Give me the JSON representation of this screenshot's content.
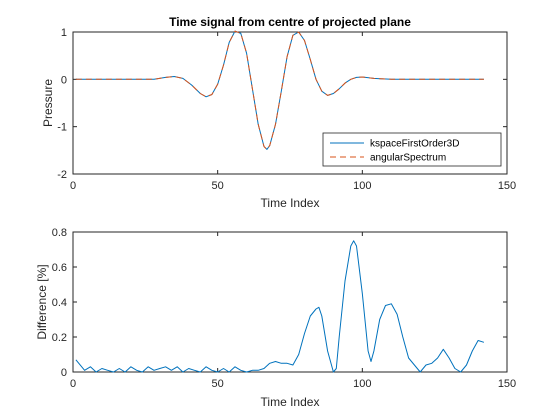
{
  "chart_data": [
    {
      "type": "line",
      "title": "Time signal from centre of projected plane",
      "xlabel": "Time Index",
      "ylabel": "Pressure",
      "xlim": [
        0,
        150
      ],
      "ylim": [
        -2,
        1
      ],
      "xticks": [
        "0",
        "50",
        "100",
        "150"
      ],
      "yticks": [
        "1",
        "0",
        "-1",
        "-2"
      ],
      "grid": false,
      "legend_position": "bottom-right",
      "colors": {
        "kspaceFirstOrder3D": "#0072BD",
        "angularSpectrum": "#D95319"
      },
      "series": [
        {
          "name": "kspaceFirstOrder3D",
          "style": "solid",
          "x": [
            1,
            20,
            28,
            32,
            35,
            38,
            41,
            44,
            46,
            48,
            50,
            52,
            54,
            56,
            58,
            60,
            62,
            64,
            66,
            67,
            68,
            70,
            72,
            74,
            76,
            78,
            80,
            82,
            84,
            86,
            88,
            90,
            92,
            94,
            96,
            98,
            100,
            104,
            110,
            115,
            120,
            142
          ],
          "y": [
            0,
            0,
            0,
            0.04,
            0.06,
            0.02,
            -0.12,
            -0.3,
            -0.37,
            -0.32,
            -0.1,
            0.3,
            0.78,
            1.02,
            0.97,
            0.55,
            -0.2,
            -0.95,
            -1.42,
            -1.48,
            -1.4,
            -0.95,
            -0.25,
            0.48,
            0.93,
            1.0,
            0.82,
            0.42,
            0.0,
            -0.25,
            -0.34,
            -0.3,
            -0.2,
            -0.08,
            0.0,
            0.04,
            0.05,
            0.02,
            0,
            0,
            0,
            0
          ]
        },
        {
          "name": "angularSpectrum",
          "style": "dashed",
          "x": [
            1,
            20,
            28,
            32,
            35,
            38,
            41,
            44,
            46,
            48,
            50,
            52,
            54,
            56,
            58,
            60,
            62,
            64,
            66,
            67,
            68,
            70,
            72,
            74,
            76,
            78,
            80,
            82,
            84,
            86,
            88,
            90,
            92,
            94,
            96,
            98,
            100,
            104,
            110,
            115,
            120,
            142
          ],
          "y": [
            0,
            0,
            0,
            0.04,
            0.06,
            0.02,
            -0.12,
            -0.3,
            -0.37,
            -0.32,
            -0.1,
            0.3,
            0.78,
            1.02,
            0.97,
            0.55,
            -0.2,
            -0.95,
            -1.42,
            -1.48,
            -1.4,
            -0.95,
            -0.25,
            0.48,
            0.93,
            1.0,
            0.82,
            0.42,
            0.0,
            -0.25,
            -0.34,
            -0.3,
            -0.2,
            -0.08,
            0.0,
            0.04,
            0.05,
            0.02,
            0,
            0,
            0,
            0
          ]
        }
      ]
    },
    {
      "type": "line",
      "title": "",
      "xlabel": "Time Index",
      "ylabel": "Difference [%]",
      "xlim": [
        0,
        150
      ],
      "ylim": [
        0,
        0.8
      ],
      "xticks": [
        "0",
        "50",
        "100",
        "150"
      ],
      "yticks": [
        "0.8",
        "0.6",
        "0.4",
        "0.2",
        "0"
      ],
      "grid": false,
      "colors": {
        "line": "#0072BD"
      },
      "series": [
        {
          "x": [
            1,
            2,
            4,
            6,
            8,
            10,
            12,
            14,
            16,
            18,
            20,
            22,
            24,
            26,
            28,
            30,
            32,
            34,
            36,
            38,
            40,
            42,
            44,
            46,
            48,
            50,
            52,
            54,
            56,
            58,
            60,
            62,
            64,
            66,
            68,
            70,
            72,
            74,
            76,
            78,
            80,
            82,
            84,
            85,
            86,
            88,
            90,
            91,
            92,
            94,
            96,
            97,
            98,
            100,
            102,
            103,
            104,
            106,
            108,
            110,
            112,
            114,
            116,
            118,
            120,
            122,
            124,
            126,
            128,
            130,
            132,
            134,
            136,
            138,
            140,
            142
          ],
          "y": [
            0.07,
            0.05,
            0.01,
            0.03,
            0.0,
            0.02,
            0.01,
            0.0,
            0.02,
            0.0,
            0.03,
            0.01,
            0.0,
            0.03,
            0.01,
            0.02,
            0.03,
            0.01,
            0.03,
            0.0,
            0.02,
            0.01,
            0.0,
            0.03,
            0.01,
            0.0,
            0.02,
            0.0,
            0.03,
            0.01,
            0.0,
            0.01,
            0.01,
            0.02,
            0.05,
            0.06,
            0.05,
            0.05,
            0.04,
            0.1,
            0.22,
            0.32,
            0.36,
            0.37,
            0.32,
            0.12,
            0.0,
            0.02,
            0.2,
            0.52,
            0.72,
            0.75,
            0.72,
            0.45,
            0.12,
            0.06,
            0.12,
            0.3,
            0.38,
            0.39,
            0.33,
            0.2,
            0.08,
            0.04,
            0.0,
            0.04,
            0.05,
            0.08,
            0.13,
            0.08,
            0.02,
            0.0,
            0.04,
            0.12,
            0.18,
            0.17
          ]
        }
      ]
    }
  ]
}
